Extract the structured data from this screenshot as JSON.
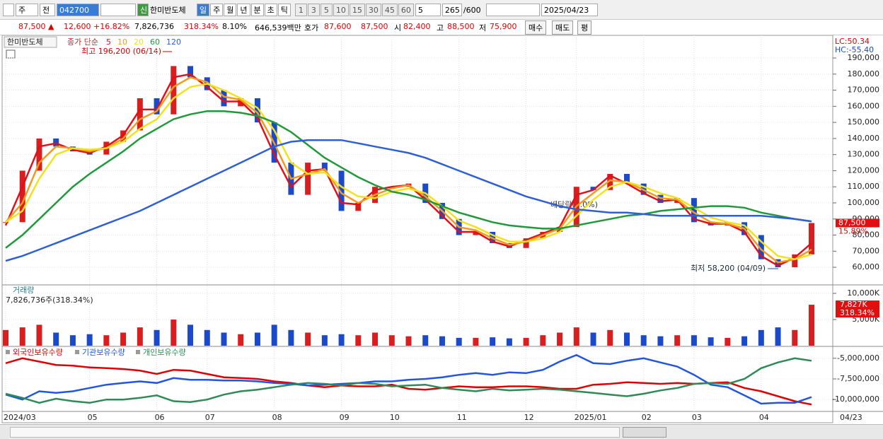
{
  "toolbar": {
    "period_tab": "주",
    "prev": "전",
    "code": "042700",
    "new_badge": "신",
    "name": "한미반도체",
    "intervals": [
      "일",
      "주",
      "월",
      "년",
      "분",
      "초",
      "틱"
    ],
    "minutes": [
      "1",
      "3",
      "5",
      "10",
      "15",
      "30",
      "45",
      "60"
    ],
    "count_select": "5",
    "bars": "265",
    "bars_max": "/600",
    "date": "2025/04/23"
  },
  "info_bar": {
    "price": "87,500 ▲",
    "change": "12,600",
    "change_rate": "+16.82%",
    "volume": "7,826,736",
    "volume_rate": "318.34%",
    "turnover": "8.10%",
    "amount": "646,539백만",
    "quote_label": "호가",
    "ask": "87,600",
    "bid": "87,500",
    "open_label": "시",
    "open": "82,400",
    "high_label": "고",
    "high": "88,500",
    "low_label": "저",
    "low": "75,900",
    "buttons": [
      "매수",
      "매도",
      "평"
    ]
  },
  "chart_data": [
    {
      "type": "candlestick",
      "title": "한미반도체",
      "legend_label": "종가 단순",
      "up_color": "#d81e1e",
      "down_color": "#1a49c9",
      "categories": [
        "2024/03",
        null,
        null,
        null,
        null,
        "05",
        null,
        null,
        null,
        "06",
        null,
        null,
        "07",
        null,
        null,
        null,
        "08",
        null,
        null,
        null,
        "09",
        null,
        null,
        "10",
        null,
        null,
        null,
        "11",
        null,
        null,
        null,
        "12",
        null,
        null,
        "2025/01",
        null,
        null,
        null,
        "02",
        null,
        null,
        "03",
        null,
        null,
        null,
        "04",
        null,
        null,
        null
      ],
      "values": [
        88000,
        120000,
        140000,
        135000,
        132000,
        130000,
        138000,
        145000,
        165000,
        155000,
        185000,
        178000,
        170000,
        160000,
        165000,
        150000,
        125000,
        105000,
        125000,
        120000,
        95000,
        100000,
        110000,
        110000,
        112000,
        100000,
        90000,
        80000,
        82000,
        75000,
        72000,
        78000,
        82000,
        85000,
        110000,
        108000,
        118000,
        112000,
        105000,
        100000,
        103000,
        88000,
        86000,
        88000,
        80000,
        65000,
        60000,
        68000,
        87500
      ],
      "series": [
        {
          "name": "5",
          "color": "#e0101b",
          "values": [
            86000,
            110000,
            135000,
            137000,
            133000,
            131000,
            135000,
            142000,
            158000,
            158000,
            178000,
            180000,
            172000,
            163000,
            163000,
            153000,
            130000,
            110000,
            120000,
            121000,
            100000,
            99000,
            108000,
            110000,
            111000,
            102000,
            92000,
            82000,
            82000,
            76000,
            73000,
            77000,
            81000,
            85000,
            105000,
            108000,
            117000,
            112000,
            106000,
            101000,
            102000,
            90000,
            87000,
            87000,
            82000,
            67000,
            61000,
            66000,
            75000
          ]
        },
        {
          "name": "10",
          "color": "#f39a1e",
          "values": [
            88000,
            100000,
            125000,
            135000,
            134000,
            132000,
            134000,
            140000,
            152000,
            157000,
            172000,
            178000,
            175000,
            166000,
            164000,
            156000,
            137000,
            115000,
            118000,
            121000,
            106000,
            100000,
            105000,
            109000,
            111000,
            104000,
            95000,
            85000,
            83000,
            78000,
            74000,
            76000,
            80000,
            84000,
            98000,
            106000,
            114000,
            113000,
            108000,
            103000,
            102000,
            94000,
            88000,
            87000,
            84000,
            71000,
            63000,
            65000,
            71000
          ]
        },
        {
          "name": "20",
          "color": "#f2e21a",
          "values": [
            88000,
            95000,
            115000,
            130000,
            134000,
            133000,
            134000,
            138000,
            146000,
            152000,
            165000,
            172000,
            174000,
            170000,
            165000,
            159000,
            145000,
            125000,
            118000,
            119000,
            110000,
            104000,
            103000,
            107000,
            109000,
            106000,
            98000,
            89000,
            85000,
            80000,
            76000,
            76000,
            78000,
            82000,
            92000,
            102000,
            110000,
            113000,
            110000,
            106000,
            103000,
            97000,
            91000,
            88000,
            86000,
            76000,
            67000,
            65000,
            68000
          ]
        },
        {
          "name": "60",
          "color": "#1f9a3a",
          "values": [
            72000,
            80000,
            90000,
            100000,
            110000,
            118000,
            125000,
            132000,
            140000,
            146000,
            152000,
            155000,
            157000,
            157000,
            156000,
            154000,
            150000,
            144000,
            136000,
            128000,
            122000,
            116000,
            111000,
            107000,
            105000,
            102000,
            98000,
            94000,
            91000,
            88000,
            86000,
            85000,
            84000,
            84000,
            86000,
            88000,
            90000,
            92000,
            93000,
            95000,
            96000,
            97000,
            98000,
            98000,
            97000,
            94000,
            92000,
            90000,
            88500
          ]
        },
        {
          "name": "120",
          "color": "#2f5fd6",
          "values": [
            64000,
            67000,
            71000,
            75000,
            79000,
            83000,
            87000,
            91000,
            95000,
            100000,
            105000,
            110000,
            115000,
            120000,
            125000,
            130000,
            135000,
            138000,
            139000,
            139000,
            139000,
            137000,
            135000,
            133000,
            131000,
            128000,
            124000,
            120000,
            116000,
            112000,
            108000,
            104000,
            101000,
            98000,
            96000,
            95000,
            94000,
            94000,
            93000,
            92000,
            92000,
            92000,
            92000,
            92000,
            92000,
            92000,
            91000,
            90000,
            88500
          ]
        }
      ],
      "ylim": [
        49500,
        198800
      ],
      "yticks": [
        {
          "value": 60000,
          "label": "60,000"
        },
        {
          "value": 70000,
          "label": "70,000"
        },
        {
          "value": 80000,
          "label": "80,000"
        },
        {
          "value": 90000,
          "label": "90,000"
        },
        {
          "value": 100000,
          "label": "100,000"
        },
        {
          "value": 110000,
          "label": "110,000"
        },
        {
          "value": 120000,
          "label": "120,000"
        },
        {
          "value": 130000,
          "label": "130,000"
        },
        {
          "value": 140000,
          "label": "140,000"
        },
        {
          "value": 150000,
          "label": "150,000"
        },
        {
          "value": 160000,
          "label": "160,000"
        },
        {
          "value": 170000,
          "label": "170,000"
        },
        {
          "value": 180000,
          "label": "180,000"
        },
        {
          "value": 190000,
          "label": "190,000"
        }
      ],
      "high_note": "최고 196,200 (06/14)",
      "low_note": "최저 58,200 (04/09)",
      "dividend_note": "배당락(0.0%)",
      "price_label": "87,500",
      "change_label": "15.89%",
      "lc": "LC:50.34",
      "hc": "HC:-55.40"
    },
    {
      "type": "bar",
      "title": "거래량",
      "subtitle": "7,826,736주(318.34%)",
      "values": [
        3000000,
        3500000,
        4000000,
        2500000,
        2000000,
        2200000,
        2000000,
        2500000,
        3500000,
        3000000,
        5000000,
        4000000,
        3000000,
        2500000,
        2200000,
        2500000,
        4000000,
        3000000,
        2500000,
        2000000,
        2200000,
        2000000,
        2500000,
        2000000,
        1800000,
        2000000,
        1800000,
        1500000,
        1500000,
        1600000,
        1400000,
        1500000,
        2000000,
        2500000,
        3500000,
        2500000,
        3000000,
        2500000,
        2000000,
        1800000,
        2000000,
        2000000,
        1600000,
        1500000,
        1800000,
        3000000,
        3500000,
        3000000,
        7826736
      ],
      "ylim": [
        0,
        11350000
      ],
      "yticks": [
        {
          "value": 5000000,
          "label": "5,000K"
        },
        {
          "value": 10000000,
          "label": "10,000K"
        }
      ],
      "last_label": "7,827K",
      "last_rate": "318.34%"
    },
    {
      "type": "line",
      "series": [
        {
          "name": "외국인보유수량",
          "color": "#e00000",
          "values": [
            -5600000,
            -5000000,
            -5400000,
            -5800000,
            -5900000,
            -6100000,
            -6200000,
            -6300000,
            -6500000,
            -6900000,
            -6400000,
            -6500000,
            -6900000,
            -7300000,
            -7400000,
            -7500000,
            -7800000,
            -8000000,
            -8300000,
            -8500000,
            -8300000,
            -8400000,
            -8400000,
            -8200000,
            -8700000,
            -8800000,
            -8600000,
            -8400000,
            -8500000,
            -8500000,
            -8400000,
            -8400000,
            -8500000,
            -8700000,
            -8700000,
            -8200000,
            -8100000,
            -7900000,
            -8000000,
            -8100000,
            -8000000,
            -8100000,
            -8000000,
            -7900000,
            -8600000,
            -9000000,
            -9600000,
            -10200000,
            -10600000
          ]
        },
        {
          "name": "기관보유수량",
          "color": "#2255e0",
          "values": [
            -9400000,
            -10000000,
            -9000000,
            -9200000,
            -9000000,
            -8600000,
            -8200000,
            -8000000,
            -7800000,
            -8000000,
            -7400000,
            -7600000,
            -7600000,
            -7700000,
            -7700000,
            -7800000,
            -8000000,
            -8100000,
            -8300000,
            -8200000,
            -8100000,
            -8000000,
            -7800000,
            -7800000,
            -7600000,
            -7500000,
            -7300000,
            -7000000,
            -6800000,
            -7000000,
            -6700000,
            -6800000,
            -6400000,
            -5400000,
            -4600000,
            -5600000,
            -5700000,
            -5300000,
            -5000000,
            -5500000,
            -6000000,
            -7000000,
            -8200000,
            -8500000,
            -9500000,
            -10500000,
            -10400000,
            -10400000,
            -9700000
          ]
        },
        {
          "name": "개인보유수량",
          "color": "#2e8b57",
          "values": [
            -9300000,
            -9800000,
            -10400000,
            -9900000,
            -10200000,
            -10400000,
            -10000000,
            -10000000,
            -9800000,
            -9500000,
            -10200000,
            -10300000,
            -10000000,
            -9400000,
            -9000000,
            -8800000,
            -8500000,
            -8200000,
            -8000000,
            -8100000,
            -8300000,
            -8000000,
            -8100000,
            -8400000,
            -8300000,
            -8200000,
            -8600000,
            -8800000,
            -9000000,
            -8700000,
            -8900000,
            -8800000,
            -8700000,
            -8800000,
            -9000000,
            -9200000,
            -9400000,
            -9600000,
            -9300000,
            -8900000,
            -8600000,
            -8100000,
            -8000000,
            -8100000,
            -7500000,
            -6200000,
            -5500000,
            -5000000,
            -5300000
          ]
        }
      ],
      "ylim": [
        -11356000,
        -3729000
      ],
      "yticks": [
        {
          "value": -5000000,
          "label": "-5,000,000"
        },
        {
          "value": -7500000,
          "label": "-7,500,000"
        },
        {
          "value": -10000000,
          "label": "-10,000,000"
        }
      ]
    }
  ],
  "end_date": "04/23"
}
